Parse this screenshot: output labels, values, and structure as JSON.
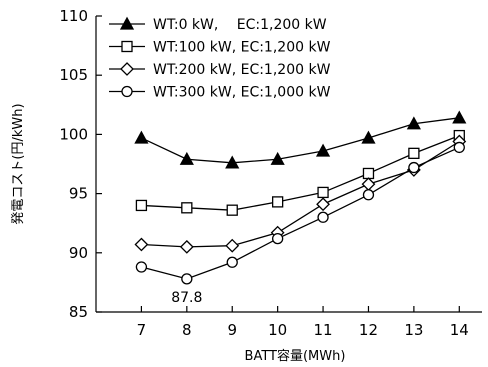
{
  "chart_data": {
    "type": "line",
    "xlabel": "BATT容量(MWh)",
    "ylabel": "発電コスト(円/kWh)",
    "x": [
      7,
      8,
      9,
      10,
      11,
      12,
      13,
      14
    ],
    "xlim": [
      6,
      14.5
    ],
    "ylim": [
      85,
      110
    ],
    "yticks": [
      85,
      90,
      95,
      100,
      105,
      110
    ],
    "grid": false,
    "legend_position": "top-left",
    "series": [
      {
        "name": "WT:0 kW,　 EC:1,200 kW",
        "marker": "filled-triangle",
        "values": [
          99.7,
          97.9,
          97.6,
          97.9,
          98.6,
          99.7,
          100.9,
          101.4
        ]
      },
      {
        "name": "WT:100 kW, EC:1,200 kW",
        "marker": "open-square",
        "values": [
          94.0,
          93.8,
          93.6,
          94.3,
          95.1,
          96.7,
          98.4,
          99.9
        ]
      },
      {
        "name": "WT:200 kW, EC:1,200 kW",
        "marker": "open-diamond",
        "values": [
          90.7,
          90.5,
          90.6,
          91.7,
          94.1,
          95.8,
          97.0,
          99.4
        ]
      },
      {
        "name": "WT:300 kW, EC:1,000 kW",
        "marker": "open-circle",
        "values": [
          88.8,
          87.8,
          89.2,
          91.2,
          93.0,
          94.9,
          97.2,
          98.9
        ]
      }
    ],
    "annotations": [
      {
        "text": "87.8",
        "x": 8,
        "y": 87.8
      }
    ]
  }
}
